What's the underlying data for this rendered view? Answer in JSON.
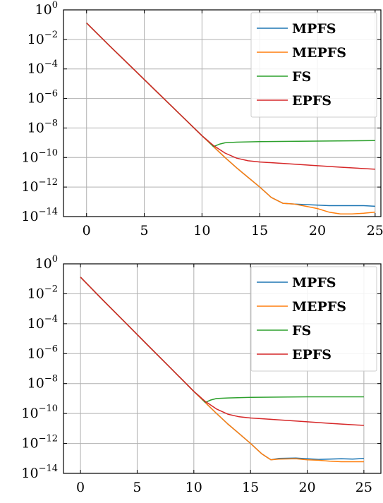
{
  "chart_data": [
    {
      "type": "line",
      "yscale": "log",
      "xlim": [
        -2,
        25.5
      ],
      "ylim": [
        1e-14,
        1
      ],
      "xticks": [
        0,
        5,
        10,
        15,
        20,
        25
      ],
      "yticks": [
        1,
        0.01,
        0.0001,
        1e-06,
        1e-08,
        1e-10,
        1e-12,
        1e-14
      ],
      "ytick_labels": [
        {
          "base": "10",
          "exp": "0"
        },
        {
          "base": "10",
          "exp": "−2"
        },
        {
          "base": "10",
          "exp": "−4"
        },
        {
          "base": "10",
          "exp": "−6"
        },
        {
          "base": "10",
          "exp": "−8"
        },
        {
          "base": "10",
          "exp": "−10"
        },
        {
          "base": "10",
          "exp": "−12"
        },
        {
          "base": "10",
          "exp": "−14"
        }
      ],
      "grid": true,
      "legend": "top-right",
      "series": [
        {
          "name": "MPFS",
          "color": "#1f77b4",
          "x": [
            0,
            2,
            4,
            6,
            8,
            10,
            11,
            12,
            13,
            14,
            15,
            16,
            17,
            18,
            19,
            20,
            21,
            22,
            23,
            24,
            25
          ],
          "y": [
            0.13,
            0.0036,
            0.00011,
            3.3e-06,
            1e-07,
            3e-09,
            5.5e-10,
            1e-10,
            2e-11,
            4.5e-12,
            1e-12,
            2e-13,
            8e-14,
            7e-14,
            6.5e-14,
            6e-14,
            5.5e-14,
            5.5e-14,
            5.5e-14,
            5.5e-14,
            5e-14
          ]
        },
        {
          "name": "MEPFS",
          "color": "#ff7f0e",
          "x": [
            0,
            2,
            4,
            6,
            8,
            10,
            11,
            12,
            13,
            14,
            15,
            16,
            17,
            18,
            19,
            20,
            21,
            22,
            23,
            24,
            25
          ],
          "y": [
            0.13,
            0.0036,
            0.00011,
            3.3e-06,
            1e-07,
            3e-09,
            5.5e-10,
            1e-10,
            2e-11,
            4.5e-12,
            1e-12,
            2e-13,
            8e-14,
            7e-14,
            5e-14,
            3.5e-14,
            2e-14,
            1.5e-14,
            1.5e-14,
            1.7e-14,
            2e-14
          ]
        },
        {
          "name": "FS",
          "color": "#2ca02c",
          "x": [
            0,
            2,
            4,
            6,
            8,
            10,
            10.5,
            11,
            11.5,
            12,
            13,
            15,
            20,
            25
          ],
          "y": [
            0.13,
            0.0036,
            0.00011,
            3.3e-06,
            1e-07,
            3e-09,
            1.4e-09,
            5.5e-10,
            8e-10,
            1e-09,
            1.1e-09,
            1.2e-09,
            1.3e-09,
            1.4e-09
          ]
        },
        {
          "name": "EPFS",
          "color": "#d62728",
          "x": [
            0,
            2,
            4,
            6,
            8,
            10,
            11,
            12,
            13,
            14,
            15,
            17,
            20,
            22,
            25
          ],
          "y": [
            0.13,
            0.0036,
            0.00011,
            3.3e-06,
            1e-07,
            3e-09,
            6.5e-10,
            2e-10,
            9e-11,
            6e-11,
            5e-11,
            4e-11,
            2.8e-11,
            2.2e-11,
            1.6e-11
          ]
        }
      ]
    },
    {
      "type": "line",
      "yscale": "log",
      "xlim": [
        -1.5,
        26.5
      ],
      "ylim": [
        1e-14,
        1
      ],
      "xticks": [
        0,
        5,
        10,
        15,
        20,
        25
      ],
      "yticks": [
        1,
        0.01,
        0.0001,
        1e-06,
        1e-08,
        1e-10,
        1e-12,
        1e-14
      ],
      "ytick_labels": [
        {
          "base": "10",
          "exp": "0"
        },
        {
          "base": "10",
          "exp": "−2"
        },
        {
          "base": "10",
          "exp": "−4"
        },
        {
          "base": "10",
          "exp": "−6"
        },
        {
          "base": "10",
          "exp": "−8"
        },
        {
          "base": "10",
          "exp": "−10"
        },
        {
          "base": "10",
          "exp": "−12"
        },
        {
          "base": "10",
          "exp": "−14"
        }
      ],
      "grid": true,
      "legend": "top-right",
      "series": [
        {
          "name": "MPFS",
          "color": "#1f77b4",
          "x": [
            0,
            2,
            4,
            6,
            8,
            10,
            11,
            12,
            13,
            14,
            15,
            16,
            16.8,
            17.5,
            19,
            20,
            21,
            22,
            23,
            24,
            25
          ],
          "y": [
            0.13,
            0.0036,
            0.00011,
            3.3e-06,
            1e-07,
            3e-09,
            5.5e-10,
            1e-10,
            2e-11,
            4.5e-12,
            1e-12,
            2e-13,
            8e-14,
            1e-13,
            1.05e-13,
            9.5e-14,
            8.5e-14,
            9e-14,
            9.5e-14,
            9e-14,
            1e-13
          ]
        },
        {
          "name": "MEPFS",
          "color": "#ff7f0e",
          "x": [
            0,
            2,
            4,
            6,
            8,
            10,
            11,
            12,
            13,
            14,
            15,
            16,
            16.8,
            17.5,
            19,
            20,
            21,
            22,
            23,
            24,
            25
          ],
          "y": [
            0.13,
            0.0036,
            0.00011,
            3.3e-06,
            1e-07,
            3e-09,
            5.5e-10,
            1e-10,
            2e-11,
            4.5e-12,
            1e-12,
            2e-13,
            8e-14,
            9e-14,
            9.5e-14,
            8e-14,
            7.5e-14,
            6.5e-14,
            6e-14,
            6e-14,
            6e-14
          ]
        },
        {
          "name": "FS",
          "color": "#2ca02c",
          "x": [
            0,
            2,
            4,
            6,
            8,
            10,
            10.5,
            11,
            11.5,
            12,
            13,
            15,
            20,
            25
          ],
          "y": [
            0.13,
            0.0036,
            0.00011,
            3.3e-06,
            1e-07,
            3e-09,
            1.4e-09,
            5.5e-10,
            8e-10,
            1e-09,
            1.1e-09,
            1.2e-09,
            1.3e-09,
            1.3e-09
          ]
        },
        {
          "name": "EPFS",
          "color": "#d62728",
          "x": [
            0,
            2,
            4,
            6,
            8,
            10,
            11,
            12,
            13,
            14,
            15,
            17,
            20,
            22,
            25
          ],
          "y": [
            0.13,
            0.0036,
            0.00011,
            3.3e-06,
            1e-07,
            3e-09,
            6.5e-10,
            2e-10,
            9e-11,
            6e-11,
            5e-11,
            4e-11,
            2.8e-11,
            2.2e-11,
            1.6e-11
          ]
        }
      ]
    }
  ]
}
